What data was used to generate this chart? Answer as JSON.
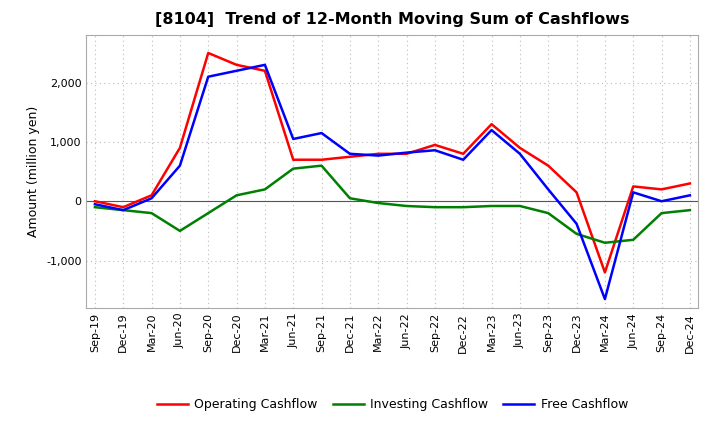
{
  "title": "[8104]  Trend of 12-Month Moving Sum of Cashflows",
  "ylabel": "Amount (million yen)",
  "x_labels": [
    "Sep-19",
    "Dec-19",
    "Mar-20",
    "Jun-20",
    "Sep-20",
    "Dec-20",
    "Mar-21",
    "Jun-21",
    "Sep-21",
    "Dec-21",
    "Mar-22",
    "Jun-22",
    "Sep-22",
    "Dec-22",
    "Mar-23",
    "Jun-23",
    "Sep-23",
    "Dec-23",
    "Mar-24",
    "Jun-24",
    "Sep-24",
    "Dec-24"
  ],
  "operating": [
    0,
    -100,
    100,
    900,
    2500,
    2300,
    2200,
    700,
    700,
    750,
    800,
    800,
    950,
    800,
    1300,
    900,
    600,
    150,
    -1200,
    250,
    200,
    300
  ],
  "investing": [
    -100,
    -150,
    -200,
    -500,
    -200,
    100,
    200,
    550,
    600,
    50,
    -30,
    -80,
    -100,
    -100,
    -80,
    -80,
    -200,
    -550,
    -700,
    -650,
    -200,
    -150
  ],
  "free": [
    -50,
    -150,
    50,
    600,
    2100,
    2200,
    2300,
    1050,
    1150,
    800,
    770,
    820,
    860,
    700,
    1200,
    800,
    200,
    -380,
    -1650,
    150,
    0,
    100
  ],
  "operating_color": "#FF0000",
  "investing_color": "#008000",
  "free_color": "#0000FF",
  "ylim": [
    -1800,
    2800
  ],
  "yticks": [
    -1000,
    0,
    1000,
    2000
  ],
  "grid_color": "#bbbbbb",
  "background_color": "#ffffff",
  "legend_labels": [
    "Operating Cashflow",
    "Investing Cashflow",
    "Free Cashflow"
  ],
  "line_width": 1.8
}
